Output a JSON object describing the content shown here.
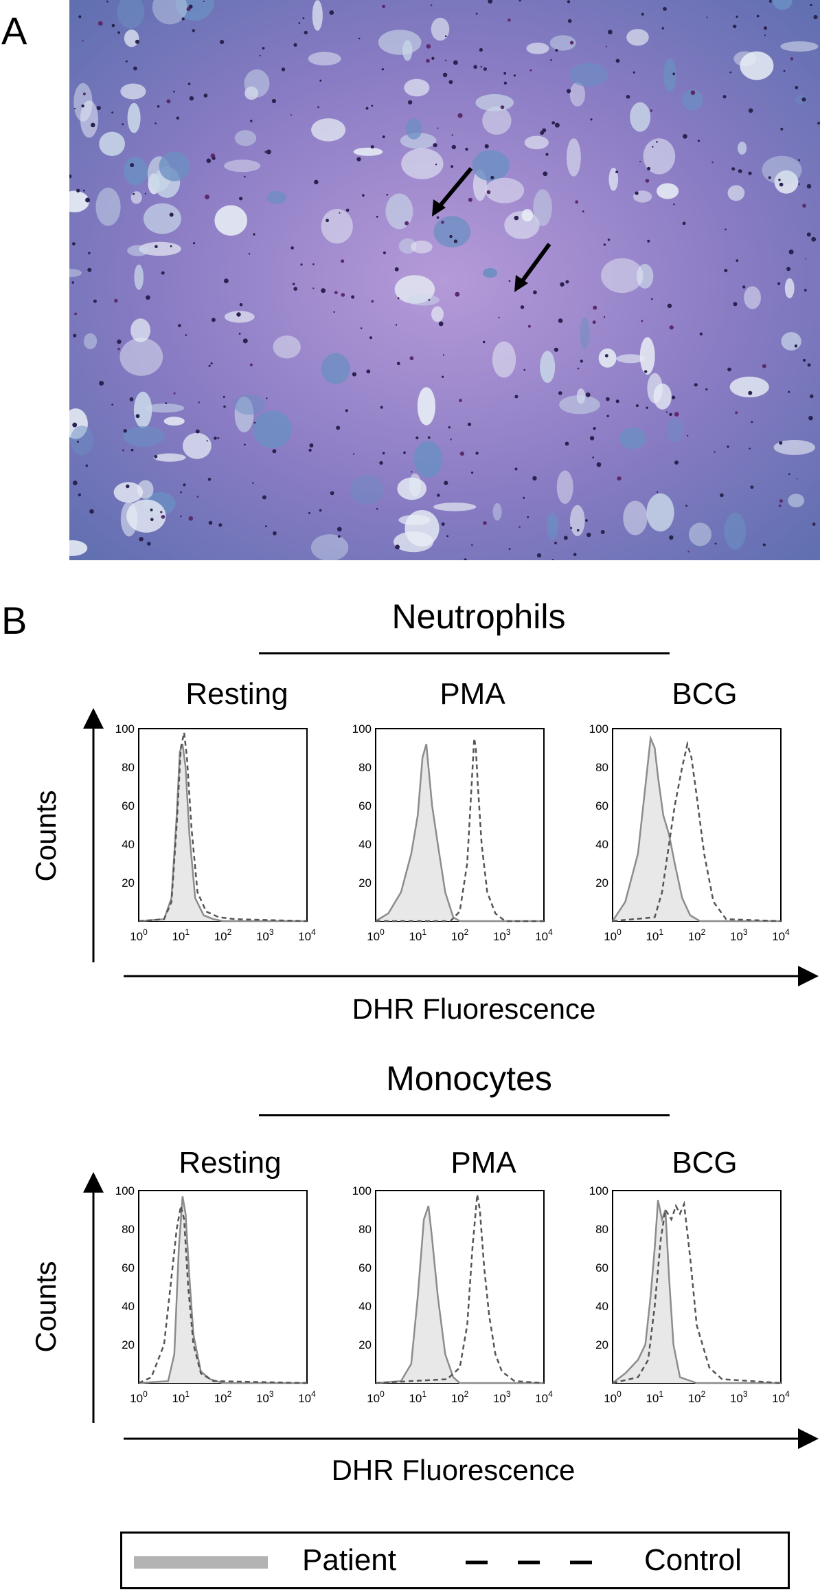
{
  "panels": {
    "a": "A",
    "b": "B"
  },
  "sections": [
    {
      "title": "Neutrophils",
      "counts_label": "Counts",
      "x_axis_label": "DHR Fluorescence",
      "conditions": [
        "Resting",
        "PMA",
        "BCG"
      ]
    },
    {
      "title": "Monocytes",
      "counts_label": "Counts",
      "x_axis_label": "DHR Fluorescence",
      "conditions": [
        "Resting",
        "PMA",
        "BCG"
      ]
    }
  ],
  "legend": {
    "patient": "Patient",
    "control": "Control"
  },
  "colors": {
    "patient_fill": "#e8e8e8",
    "patient_line": "#8c8c8c",
    "control_line": "#555555",
    "legend_patient_bar": "#b3b3b3"
  },
  "chart_data": [
    {
      "type": "area",
      "group": "Neutrophils",
      "condition": "Resting",
      "x_scale": "log",
      "xlim": [
        1,
        10000
      ],
      "ylim": [
        0,
        100
      ],
      "x_ticks": [
        "10^0",
        "10^1",
        "10^2",
        "10^3",
        "10^4"
      ],
      "y_ticks": [
        "20",
        "40",
        "60",
        "80",
        "100"
      ],
      "series": [
        {
          "name": "Patient",
          "style": "filled-solid",
          "x": [
            1,
            4,
            6,
            8,
            9.5,
            11,
            13,
            16,
            22,
            35,
            60,
            100,
            10000
          ],
          "y": [
            0,
            1,
            12,
            55,
            88,
            92,
            80,
            45,
            12,
            3,
            1,
            0,
            0
          ]
        },
        {
          "name": "Control",
          "style": "dashed",
          "x": [
            1,
            4,
            6,
            8,
            10,
            12,
            14,
            18,
            25,
            40,
            80,
            200,
            10000
          ],
          "y": [
            0,
            1,
            10,
            50,
            90,
            98,
            85,
            48,
            15,
            5,
            2,
            1,
            0
          ]
        }
      ]
    },
    {
      "type": "area",
      "group": "Neutrophils",
      "condition": "PMA",
      "x_scale": "log",
      "xlim": [
        1,
        10000
      ],
      "ylim": [
        0,
        100
      ],
      "x_ticks": [
        "10^0",
        "10^1",
        "10^2",
        "10^3",
        "10^4"
      ],
      "y_ticks": [
        "20",
        "40",
        "60",
        "80",
        "100"
      ],
      "series": [
        {
          "name": "Patient",
          "style": "filled-solid",
          "x": [
            1,
            2,
            4,
            7,
            10,
            13,
            16,
            18,
            22,
            30,
            45,
            70,
            100,
            10000
          ],
          "y": [
            0,
            4,
            15,
            35,
            55,
            85,
            92,
            80,
            60,
            40,
            15,
            2,
            0,
            0
          ]
        },
        {
          "name": "Control",
          "style": "dashed",
          "x": [
            1,
            60,
            100,
            150,
            190,
            220,
            240,
            270,
            330,
            450,
            700,
            1200,
            10000
          ],
          "y": [
            0,
            0,
            5,
            30,
            70,
            95,
            90,
            70,
            40,
            15,
            4,
            0,
            0
          ]
        }
      ]
    },
    {
      "type": "area",
      "group": "Neutrophils",
      "condition": "BCG",
      "x_scale": "log",
      "xlim": [
        1,
        10000
      ],
      "ylim": [
        0,
        100
      ],
      "x_ticks": [
        "10^0",
        "10^1",
        "10^2",
        "10^3",
        "10^4"
      ],
      "y_ticks": [
        "20",
        "40",
        "60",
        "80",
        "100"
      ],
      "series": [
        {
          "name": "Patient",
          "style": "filled-solid",
          "x": [
            1,
            2,
            4,
            6,
            8,
            10,
            12,
            16,
            22,
            30,
            45,
            70,
            120,
            10000
          ],
          "y": [
            0,
            10,
            35,
            70,
            95,
            90,
            75,
            55,
            45,
            30,
            12,
            3,
            0,
            0
          ]
        },
        {
          "name": "Control",
          "style": "dashed",
          "x": [
            1,
            10,
            15,
            22,
            30,
            45,
            60,
            75,
            100,
            150,
            250,
            500,
            10000
          ],
          "y": [
            0,
            2,
            15,
            40,
            60,
            80,
            92,
            85,
            65,
            35,
            10,
            1,
            0
          ]
        }
      ]
    },
    {
      "type": "area",
      "group": "Monocytes",
      "condition": "Resting",
      "x_scale": "log",
      "xlim": [
        1,
        10000
      ],
      "ylim": [
        0,
        100
      ],
      "x_ticks": [
        "10^0",
        "10^1",
        "10^2",
        "10^3",
        "10^4"
      ],
      "y_ticks": [
        "20",
        "40",
        "60",
        "80",
        "100"
      ],
      "series": [
        {
          "name": "Patient",
          "style": "filled-solid",
          "x": [
            1,
            5,
            7,
            9,
            11,
            13,
            16,
            20,
            30,
            50,
            100,
            10000
          ],
          "y": [
            0,
            1,
            15,
            70,
            97,
            88,
            55,
            25,
            6,
            2,
            0,
            0
          ]
        },
        {
          "name": "Control",
          "style": "dashed",
          "x": [
            1,
            2,
            4,
            6,
            8,
            10,
            12,
            15,
            20,
            30,
            60,
            10000
          ],
          "y": [
            0,
            3,
            20,
            55,
            80,
            92,
            85,
            50,
            20,
            5,
            1,
            0
          ]
        }
      ]
    },
    {
      "type": "area",
      "group": "Monocytes",
      "condition": "PMA",
      "x_scale": "log",
      "xlim": [
        1,
        10000
      ],
      "ylim": [
        0,
        100
      ],
      "x_ticks": [
        "10^0",
        "10^1",
        "10^2",
        "10^3",
        "10^4"
      ],
      "y_ticks": [
        "20",
        "40",
        "60",
        "80",
        "100"
      ],
      "series": [
        {
          "name": "Patient",
          "style": "filled-solid",
          "x": [
            1,
            4,
            7,
            10,
            14,
            18,
            22,
            30,
            45,
            70,
            100,
            10000
          ],
          "y": [
            0,
            1,
            10,
            45,
            85,
            92,
            75,
            45,
            15,
            3,
            0,
            0
          ]
        },
        {
          "name": "Control",
          "style": "dashed",
          "x": [
            1,
            50,
            100,
            150,
            200,
            260,
            300,
            380,
            500,
            700,
            1000,
            2000,
            10000
          ],
          "y": [
            0,
            2,
            8,
            30,
            70,
            98,
            90,
            60,
            35,
            15,
            6,
            1,
            0
          ]
        }
      ]
    },
    {
      "type": "area",
      "group": "Monocytes",
      "condition": "BCG",
      "x_scale": "log",
      "xlim": [
        1,
        10000
      ],
      "ylim": [
        0,
        100
      ],
      "x_ticks": [
        "10^0",
        "10^1",
        "10^2",
        "10^3",
        "10^4"
      ],
      "y_ticks": [
        "20",
        "40",
        "60",
        "80",
        "100"
      ],
      "series": [
        {
          "name": "Patient",
          "style": "filled-solid",
          "x": [
            1,
            2,
            4,
            6,
            8,
            10,
            12,
            15,
            18,
            22,
            28,
            40,
            100,
            10000
          ],
          "y": [
            0,
            5,
            12,
            20,
            45,
            70,
            95,
            85,
            90,
            55,
            20,
            3,
            0,
            0
          ]
        },
        {
          "name": "Control",
          "style": "dashed",
          "x": [
            1,
            4,
            7,
            10,
            14,
            18,
            25,
            32,
            40,
            50,
            70,
            100,
            200,
            400,
            10000
          ],
          "y": [
            0,
            3,
            12,
            40,
            75,
            90,
            85,
            92,
            88,
            93,
            65,
            30,
            8,
            2,
            0
          ]
        }
      ]
    }
  ]
}
